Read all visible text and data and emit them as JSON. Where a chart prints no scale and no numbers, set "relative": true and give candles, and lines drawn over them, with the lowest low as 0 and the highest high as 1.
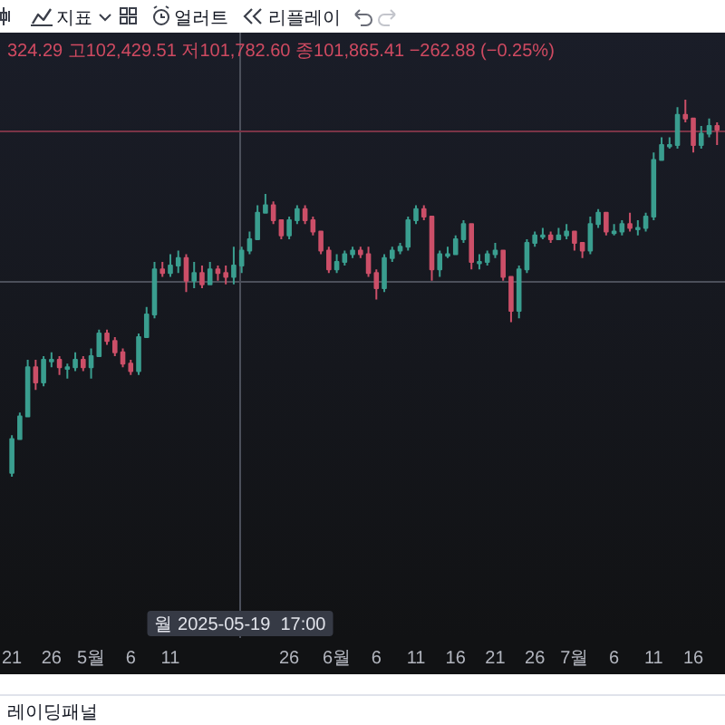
{
  "chart_data": {
    "type": "candlestick",
    "relative": true,
    "x": [
      "2025-04-21",
      "2025-04-22",
      "2025-04-23",
      "2025-04-24",
      "2025-04-25",
      "2025-04-26",
      "2025-04-27",
      "2025-04-28",
      "2025-04-29",
      "2025-04-30",
      "2025-05-01",
      "2025-05-02",
      "2025-05-03",
      "2025-05-04",
      "2025-05-05",
      "2025-05-06",
      "2025-05-07",
      "2025-05-08",
      "2025-05-09",
      "2025-05-10",
      "2025-05-11",
      "2025-05-12",
      "2025-05-13",
      "2025-05-14",
      "2025-05-15",
      "2025-05-16",
      "2025-05-17",
      "2025-05-18",
      "2025-05-19",
      "2025-05-20",
      "2025-05-21",
      "2025-05-22",
      "2025-05-23",
      "2025-05-24",
      "2025-05-25",
      "2025-05-26",
      "2025-05-27",
      "2025-05-28",
      "2025-05-29",
      "2025-05-30",
      "2025-05-31",
      "2025-06-01",
      "2025-06-02",
      "2025-06-03",
      "2025-06-04",
      "2025-06-05",
      "2025-06-06",
      "2025-06-07",
      "2025-06-08",
      "2025-06-09",
      "2025-06-10",
      "2025-06-11",
      "2025-06-12",
      "2025-06-13",
      "2025-06-14",
      "2025-06-15",
      "2025-06-16",
      "2025-06-17",
      "2025-06-18",
      "2025-06-19",
      "2025-06-20",
      "2025-06-21",
      "2025-06-22",
      "2025-06-23",
      "2025-06-24",
      "2025-06-25",
      "2025-06-26",
      "2025-06-27",
      "2025-06-28",
      "2025-06-29",
      "2025-06-30",
      "2025-07-01",
      "2025-07-02",
      "2025-07-03",
      "2025-07-04",
      "2025-07-05",
      "2025-07-06",
      "2025-07-07",
      "2025-07-08",
      "2025-07-09",
      "2025-07-10",
      "2025-07-11",
      "2025-07-12",
      "2025-07-13",
      "2025-07-14",
      "2025-07-15",
      "2025-07-16",
      "2025-07-17",
      "2025-07-18",
      "2025-07-19"
    ],
    "ohlc": [
      [
        0.01,
        0.11,
        0,
        0.1
      ],
      [
        0.1,
        0.17,
        0.1,
        0.16
      ],
      [
        0.16,
        0.31,
        0.16,
        0.29
      ],
      [
        0.29,
        0.31,
        0.23,
        0.25
      ],
      [
        0.25,
        0.32,
        0.24,
        0.31
      ],
      [
        0.31,
        0.33,
        0.29,
        0.31
      ],
      [
        0.31,
        0.32,
        0.27,
        0.29
      ],
      [
        0.29,
        0.3,
        0.26,
        0.29
      ],
      [
        0.29,
        0.33,
        0.28,
        0.31
      ],
      [
        0.31,
        0.32,
        0.28,
        0.29
      ],
      [
        0.29,
        0.34,
        0.26,
        0.32
      ],
      [
        0.32,
        0.39,
        0.32,
        0.38
      ],
      [
        0.38,
        0.39,
        0.35,
        0.36
      ],
      [
        0.36,
        0.37,
        0.32,
        0.33
      ],
      [
        0.33,
        0.34,
        0.29,
        0.3
      ],
      [
        0.3,
        0.31,
        0.27,
        0.28
      ],
      [
        0.28,
        0.38,
        0.27,
        0.37
      ],
      [
        0.37,
        0.45,
        0.37,
        0.43
      ],
      [
        0.43,
        0.57,
        0.42,
        0.55
      ],
      [
        0.55,
        0.57,
        0.53,
        0.54
      ],
      [
        0.54,
        0.59,
        0.53,
        0.56
      ],
      [
        0.56,
        0.6,
        0.54,
        0.58
      ],
      [
        0.58,
        0.59,
        0.49,
        0.52
      ],
      [
        0.52,
        0.57,
        0.5,
        0.54
      ],
      [
        0.54,
        0.56,
        0.5,
        0.51
      ],
      [
        0.51,
        0.57,
        0.51,
        0.55
      ],
      [
        0.55,
        0.56,
        0.52,
        0.54
      ],
      [
        0.54,
        0.56,
        0.51,
        0.53
      ],
      [
        0.53,
        0.61,
        0.51,
        0.56
      ],
      [
        0.56,
        0.61,
        0.54,
        0.6
      ],
      [
        0.6,
        0.65,
        0.59,
        0.63
      ],
      [
        0.63,
        0.72,
        0.63,
        0.7
      ],
      [
        0.7,
        0.75,
        0.7,
        0.72
      ],
      [
        0.72,
        0.73,
        0.67,
        0.68
      ],
      [
        0.68,
        0.68,
        0.63,
        0.64
      ],
      [
        0.64,
        0.69,
        0.63,
        0.68
      ],
      [
        0.68,
        0.72,
        0.67,
        0.71
      ],
      [
        0.71,
        0.72,
        0.67,
        0.68
      ],
      [
        0.68,
        0.69,
        0.64,
        0.65
      ],
      [
        0.65,
        0.65,
        0.59,
        0.6
      ],
      [
        0.6,
        0.61,
        0.54,
        0.55
      ],
      [
        0.55,
        0.59,
        0.54,
        0.57
      ],
      [
        0.57,
        0.6,
        0.56,
        0.59
      ],
      [
        0.59,
        0.61,
        0.58,
        0.6
      ],
      [
        0.6,
        0.61,
        0.58,
        0.59
      ],
      [
        0.59,
        0.61,
        0.53,
        0.54
      ],
      [
        0.54,
        0.55,
        0.47,
        0.5
      ],
      [
        0.5,
        0.59,
        0.49,
        0.58
      ],
      [
        0.58,
        0.61,
        0.57,
        0.6
      ],
      [
        0.6,
        0.62,
        0.59,
        0.61
      ],
      [
        0.61,
        0.69,
        0.6,
        0.68
      ],
      [
        0.68,
        0.72,
        0.67,
        0.71
      ],
      [
        0.71,
        0.72,
        0.68,
        0.69
      ],
      [
        0.69,
        0.69,
        0.52,
        0.55
      ],
      [
        0.55,
        0.6,
        0.53,
        0.59
      ],
      [
        0.59,
        0.61,
        0.58,
        0.59
      ],
      [
        0.59,
        0.64,
        0.59,
        0.63
      ],
      [
        0.63,
        0.68,
        0.62,
        0.67
      ],
      [
        0.67,
        0.67,
        0.55,
        0.57
      ],
      [
        0.57,
        0.59,
        0.55,
        0.57
      ],
      [
        0.57,
        0.6,
        0.56,
        0.59
      ],
      [
        0.59,
        0.62,
        0.58,
        0.6
      ],
      [
        0.6,
        0.6,
        0.52,
        0.53
      ],
      [
        0.53,
        0.53,
        0.41,
        0.44
      ],
      [
        0.44,
        0.56,
        0.42,
        0.55
      ],
      [
        0.55,
        0.63,
        0.54,
        0.62
      ],
      [
        0.62,
        0.65,
        0.61,
        0.64
      ],
      [
        0.64,
        0.66,
        0.63,
        0.64
      ],
      [
        0.64,
        0.65,
        0.62,
        0.63
      ],
      [
        0.63,
        0.66,
        0.63,
        0.64
      ],
      [
        0.64,
        0.67,
        0.63,
        0.65
      ],
      [
        0.65,
        0.65,
        0.6,
        0.62
      ],
      [
        0.62,
        0.62,
        0.58,
        0.6
      ],
      [
        0.6,
        0.69,
        0.59,
        0.67
      ],
      [
        0.67,
        0.71,
        0.66,
        0.7
      ],
      [
        0.7,
        0.7,
        0.64,
        0.65
      ],
      [
        0.65,
        0.67,
        0.64,
        0.65
      ],
      [
        0.65,
        0.68,
        0.64,
        0.67
      ],
      [
        0.67,
        0.7,
        0.65,
        0.66
      ],
      [
        0.66,
        0.68,
        0.64,
        0.66
      ],
      [
        0.66,
        0.7,
        0.65,
        0.69
      ],
      [
        0.69,
        0.86,
        0.68,
        0.84
      ],
      [
        0.84,
        0.9,
        0.84,
        0.88
      ],
      [
        0.88,
        0.9,
        0.87,
        0.88
      ],
      [
        0.88,
        0.98,
        0.87,
        0.96
      ],
      [
        0.96,
        1,
        0.94,
        0.95
      ],
      [
        0.95,
        0.95,
        0.86,
        0.88
      ],
      [
        0.88,
        0.93,
        0.87,
        0.91
      ],
      [
        0.91,
        0.95,
        0.9,
        0.93
      ],
      [
        0.93,
        0.94,
        0.88,
        0.92
      ]
    ],
    "colors": [
      "#3a9e8f",
      "#3a9e8f",
      "#3a9e8f",
      "#cc4f68",
      "#3a9e8f",
      "#3a9e8f",
      "#cc4f68",
      "#3a9e8f",
      "#3a9e8f",
      "#cc4f68",
      "#3a9e8f",
      "#3a9e8f",
      "#cc4f68",
      "#cc4f68",
      "#cc4f68",
      "#cc4f68",
      "#3a9e8f",
      "#3a9e8f",
      "#3a9e8f",
      "#cc4f68",
      "#3a9e8f",
      "#3a9e8f",
      "#cc4f68",
      "#3a9e8f",
      "#cc4f68",
      "#3a9e8f",
      "#cc4f68",
      "#cc4f68",
      "#3a9e8f",
      "#3a9e8f",
      "#3a9e8f",
      "#3a9e8f",
      "#3a9e8f",
      "#cc4f68",
      "#cc4f68",
      "#3a9e8f",
      "#3a9e8f",
      "#cc4f68",
      "#cc4f68",
      "#cc4f68",
      "#cc4f68",
      "#3a9e8f",
      "#3a9e8f",
      "#3a9e8f",
      "#cc4f68",
      "#cc4f68",
      "#cc4f68",
      "#3a9e8f",
      "#3a9e8f",
      "#3a9e8f",
      "#3a9e8f",
      "#3a9e8f",
      "#cc4f68",
      "#cc4f68",
      "#3a9e8f",
      "#3a9e8f",
      "#3a9e8f",
      "#3a9e8f",
      "#cc4f68",
      "#3a9e8f",
      "#3a9e8f",
      "#3a9e8f",
      "#cc4f68",
      "#cc4f68",
      "#3a9e8f",
      "#3a9e8f",
      "#3a9e8f",
      "#3a9e8f",
      "#cc4f68",
      "#3a9e8f",
      "#3a9e8f",
      "#cc4f68",
      "#cc4f68",
      "#3a9e8f",
      "#3a9e8f",
      "#cc4f68",
      "#3a9e8f",
      "#3a9e8f",
      "#cc4f68",
      "#3a9e8f",
      "#3a9e8f",
      "#3a9e8f",
      "#3a9e8f",
      "#3a9e8f",
      "#3a9e8f",
      "#cc4f68",
      "#cc4f68",
      "#3a9e8f",
      "#3a9e8f",
      "#cc4f68"
    ],
    "xlim": [
      "2025-04-19T12:00",
      "2025-07-20"
    ],
    "xticks": [
      {
        "value": "2025-04-21",
        "label": "21"
      },
      {
        "value": "2025-04-26",
        "label": "26"
      },
      {
        "value": "2025-05-01",
        "label": "5월"
      },
      {
        "value": "2025-05-06",
        "label": "6"
      },
      {
        "value": "2025-05-11",
        "label": "11"
      },
      {
        "value": "2025-05-26",
        "label": "26"
      },
      {
        "value": "2025-06-01",
        "label": "6월"
      },
      {
        "value": "2025-06-06",
        "label": "6"
      },
      {
        "value": "2025-06-11",
        "label": "11"
      },
      {
        "value": "2025-06-16",
        "label": "16"
      },
      {
        "value": "2025-06-21",
        "label": "21"
      },
      {
        "value": "2025-06-26",
        "label": "26"
      },
      {
        "value": "2025-07-01",
        "label": "7월"
      },
      {
        "value": "2025-07-06",
        "label": "6"
      },
      {
        "value": "2025-07-11",
        "label": "11"
      },
      {
        "value": "2025-07-16",
        "label": "16"
      }
    ],
    "ref_lines": [
      {
        "axis": "x",
        "value": "2025-05-19T17:00",
        "label": "월 2025-05-19  17:00",
        "color": "#4b4f5a"
      },
      {
        "axis": "y",
        "value": 0.52,
        "color": "#4b4f5a"
      },
      {
        "axis": "y",
        "value": 0.92,
        "color": "#7a3446"
      }
    ],
    "annotations": [
      "324.29 고102,429.51 저101,782.60 종101,865.41 −262.88 (−0.25%)",
      "지표",
      "얼러트",
      "리플레이",
      "레이딩패널"
    ]
  }
}
